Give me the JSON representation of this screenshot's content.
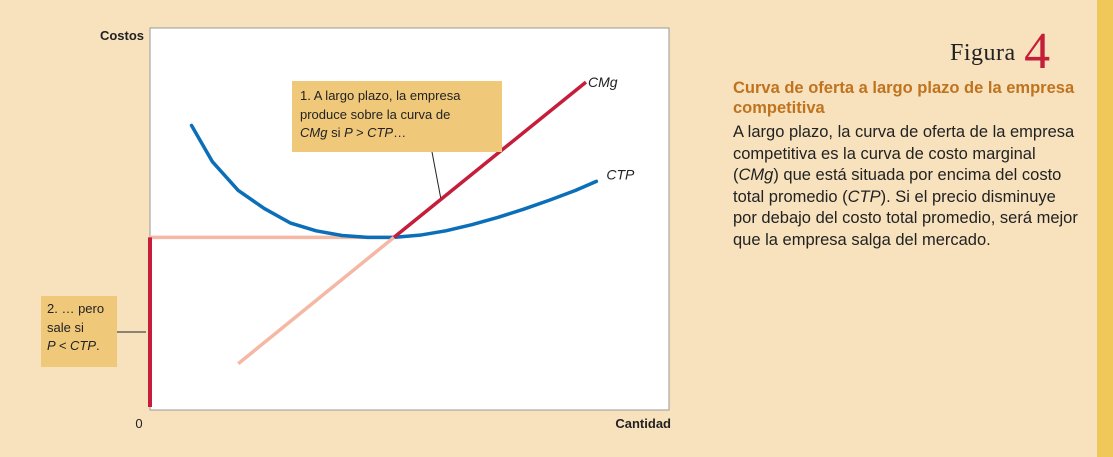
{
  "figure": {
    "word": "Figura",
    "number": "4"
  },
  "caption": {
    "title": "Curva de oferta a largo plazo de la empresa competitiva",
    "body_parts": [
      {
        "t": "A largo plazo, la curva de oferta de la empresa competitiva es la curva de costo marginal (",
        "i": false
      },
      {
        "t": "CMg",
        "i": true
      },
      {
        "t": ") que está situada por encima del costo total promedio (",
        "i": false
      },
      {
        "t": "CTP",
        "i": true
      },
      {
        "t": "). Si el precio disminuye por debajo del costo total promedio, será mejor que la empresa salga del mercado.",
        "i": false
      }
    ]
  },
  "notes": {
    "note1": {
      "line1": "1. A largo plazo, la empresa",
      "line2": "produce sobre la curva de",
      "line3_cmg": "CMg",
      "line3_si": " si ",
      "line3_cond": "P > CTP",
      "line3_end": "…"
    },
    "note2": {
      "line1": "2. … pero",
      "line2": "sale si",
      "line3_cond": "P < CTP",
      "line3_end": "."
    }
  },
  "colors": {
    "cmg": "#c41e3a",
    "cmg_faded": "#f4b8a4",
    "ctp": "#0a6fb8",
    "price_line": "#f4b8a4",
    "caption_title": "#c0731f",
    "figure_number": "#c41e3a",
    "note_bg": "#f0c87a",
    "plot_bg": "#ffffff",
    "page_bg": "#f7e2bd"
  },
  "chart_data": {
    "type": "line",
    "xlabel": "Cantidad",
    "ylabel": "Costos",
    "x_origin_label": "0",
    "xlim": [
      0,
      100
    ],
    "ylim": [
      0,
      100
    ],
    "grid": false,
    "series": [
      {
        "name": "CMg",
        "style": "faded",
        "points": [
          [
            17,
            12
          ],
          [
            47,
            47
          ]
        ]
      },
      {
        "name": "CMg",
        "style": "solid",
        "points": [
          [
            47,
            47
          ],
          [
            84,
            90
          ]
        ]
      },
      {
        "name": "CTP",
        "points": [
          [
            8,
            78
          ],
          [
            12,
            68
          ],
          [
            17,
            60
          ],
          [
            22,
            55
          ],
          [
            27,
            51
          ],
          [
            32,
            48.8
          ],
          [
            37,
            47.5
          ],
          [
            42,
            47
          ],
          [
            47,
            47
          ],
          [
            52,
            47.6
          ],
          [
            57,
            48.8
          ],
          [
            62,
            50.5
          ],
          [
            67,
            52.5
          ],
          [
            72,
            54.8
          ],
          [
            77,
            57.3
          ],
          [
            82,
            60
          ],
          [
            86,
            62.5
          ]
        ]
      },
      {
        "name": "price",
        "style": "faded",
        "points": [
          [
            0,
            47
          ],
          [
            47,
            47
          ]
        ]
      },
      {
        "name": "exit",
        "style": "solid",
        "points": [
          [
            0,
            0
          ],
          [
            0,
            47
          ]
        ]
      }
    ],
    "annotations": [
      {
        "text": "1. A largo plazo, la empresa produce sobre la curva de CMg si P > CTP…",
        "points_to": [
          56,
          58
        ]
      },
      {
        "text": "2. … pero sale si P < CTP.",
        "points_to": [
          0,
          24
        ]
      }
    ]
  }
}
